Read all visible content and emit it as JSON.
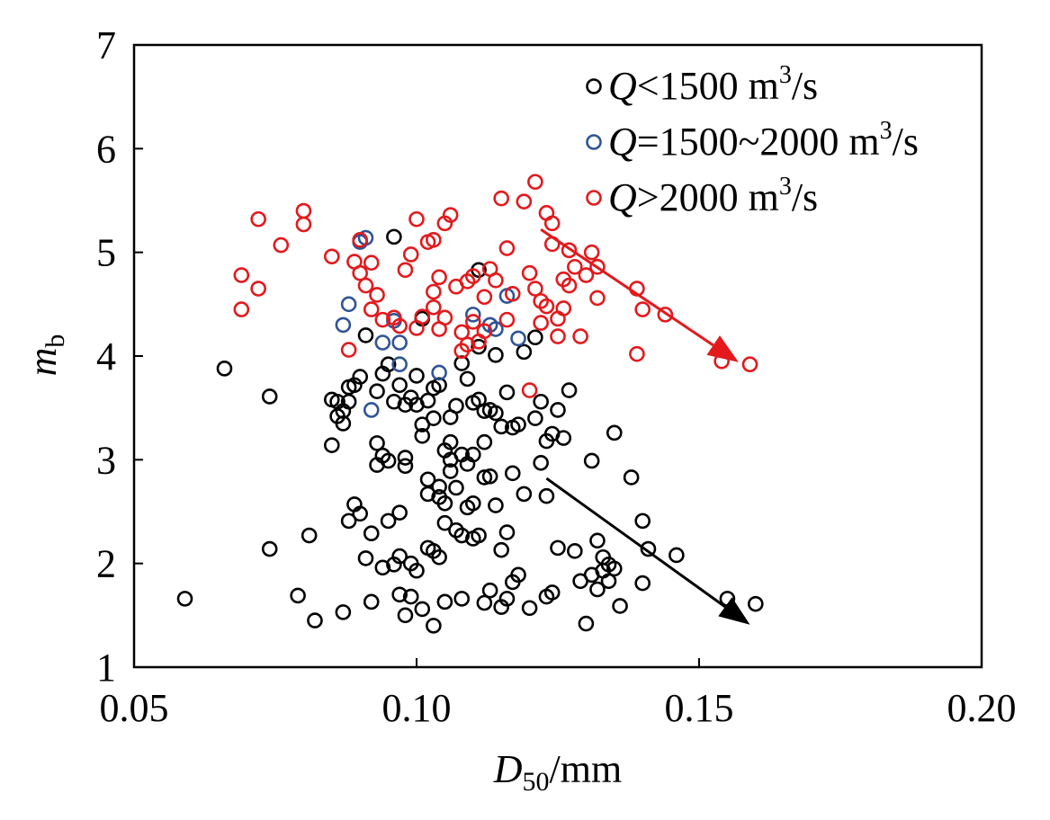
{
  "chart_data": {
    "type": "scatter",
    "title": "",
    "xlabel": {
      "main": "D",
      "sub": "50",
      "unit": "/mm"
    },
    "ylabel": {
      "main": "m",
      "sub": "b"
    },
    "xlim": [
      0.05,
      0.2
    ],
    "ylim": [
      1,
      7
    ],
    "x_ticks": [
      "0.05",
      "0.10",
      "0.15",
      "0.20"
    ],
    "x_tick_values": [
      0.05,
      0.1,
      0.15,
      0.2
    ],
    "y_ticks": [
      "1",
      "2",
      "3",
      "4",
      "5",
      "6",
      "7"
    ],
    "y_tick_values": [
      1,
      2,
      3,
      4,
      5,
      6,
      7
    ],
    "grid": false,
    "legend_position": "top-right",
    "series": [
      {
        "name": "Q<1500 m3/s",
        "legend": {
          "q": "Q",
          "rel": "<1500 m",
          "sup": "3",
          "tail": "/s"
        },
        "color": "#000000",
        "x": [
          0.059,
          0.066,
          0.074,
          0.074,
          0.079,
          0.081,
          0.082,
          0.085,
          0.085,
          0.086,
          0.086,
          0.087,
          0.087,
          0.087,
          0.088,
          0.088,
          0.088,
          0.089,
          0.089,
          0.09,
          0.09,
          0.091,
          0.091,
          0.092,
          0.092,
          0.093,
          0.093,
          0.093,
          0.094,
          0.094,
          0.094,
          0.095,
          0.095,
          0.095,
          0.096,
          0.096,
          0.097,
          0.097,
          0.097,
          0.097,
          0.098,
          0.098,
          0.098,
          0.098,
          0.099,
          0.099,
          0.099,
          0.1,
          0.1,
          0.1,
          0.101,
          0.101,
          0.101,
          0.101,
          0.102,
          0.102,
          0.102,
          0.102,
          0.103,
          0.103,
          0.103,
          0.103,
          0.104,
          0.104,
          0.104,
          0.104,
          0.105,
          0.105,
          0.105,
          0.105,
          0.106,
          0.106,
          0.106,
          0.106,
          0.107,
          0.107,
          0.107,
          0.108,
          0.108,
          0.108,
          0.108,
          0.109,
          0.109,
          0.109,
          0.11,
          0.11,
          0.11,
          0.11,
          0.111,
          0.111,
          0.111,
          0.112,
          0.112,
          0.112,
          0.112,
          0.113,
          0.113,
          0.113,
          0.114,
          0.114,
          0.114,
          0.115,
          0.115,
          0.115,
          0.116,
          0.116,
          0.116,
          0.117,
          0.117,
          0.117,
          0.118,
          0.118,
          0.119,
          0.119,
          0.12,
          0.121,
          0.121,
          0.122,
          0.122,
          0.123,
          0.123,
          0.123,
          0.124,
          0.124,
          0.125,
          0.125,
          0.126,
          0.127,
          0.128,
          0.129,
          0.13,
          0.131,
          0.131,
          0.132,
          0.132,
          0.133,
          0.133,
          0.134,
          0.134,
          0.135,
          0.135,
          0.136,
          0.138,
          0.14,
          0.14,
          0.141,
          0.146,
          0.155,
          0.16,
          0.096,
          0.111
        ],
        "y": [
          1.66,
          3.88,
          3.61,
          2.14,
          1.69,
          2.27,
          1.45,
          3.58,
          3.14,
          3.56,
          3.42,
          3.47,
          3.35,
          1.53,
          2.41,
          3.7,
          3.56,
          2.57,
          3.72,
          3.8,
          2.48,
          2.05,
          4.2,
          1.63,
          2.29,
          3.16,
          2.95,
          3.66,
          3.04,
          1.96,
          3.83,
          2.99,
          2.41,
          3.92,
          3.56,
          1.99,
          2.49,
          2.07,
          1.7,
          3.72,
          1.5,
          3.53,
          3.02,
          2.94,
          3.6,
          1.68,
          2.0,
          3.81,
          1.93,
          3.53,
          3.23,
          1.56,
          4.36,
          3.34,
          2.81,
          2.15,
          2.67,
          3.57,
          2.12,
          1.4,
          3.4,
          3.69,
          2.74,
          2.06,
          2.64,
          3.72,
          3.09,
          2.58,
          1.63,
          2.39,
          3.41,
          2.89,
          3.0,
          3.17,
          2.32,
          2.73,
          3.52,
          1.66,
          3.05,
          2.27,
          3.93,
          2.96,
          2.54,
          3.78,
          3.05,
          2.24,
          2.58,
          3.55,
          4.09,
          3.58,
          2.27,
          2.83,
          3.47,
          3.17,
          1.62,
          2.84,
          3.48,
          1.74,
          4.01,
          2.56,
          3.45,
          3.32,
          2.13,
          1.58,
          3.65,
          2.3,
          1.66,
          2.87,
          3.31,
          1.82,
          3.34,
          1.89,
          4.04,
          2.67,
          1.57,
          4.18,
          3.4,
          2.97,
          3.56,
          3.18,
          1.68,
          2.65,
          3.25,
          1.72,
          3.48,
          2.15,
          3.21,
          3.67,
          2.12,
          1.83,
          1.42,
          1.89,
          2.99,
          1.75,
          2.22,
          2.06,
          1.93,
          1.83,
          1.99,
          3.26,
          1.95,
          1.59,
          2.83,
          2.41,
          1.81,
          2.14,
          2.08,
          1.66,
          1.61,
          5.15,
          4.83
        ]
      },
      {
        "name": "Q=1500~2000 m3/s",
        "legend": {
          "q": "Q",
          "rel": "=1500~2000 m",
          "sup": "3",
          "tail": "/s"
        },
        "color": "#2f5496",
        "x": [
          0.087,
          0.088,
          0.09,
          0.091,
          0.092,
          0.094,
          0.096,
          0.097,
          0.097,
          0.104,
          0.11,
          0.113,
          0.114,
          0.116,
          0.118
        ],
        "y": [
          4.3,
          4.5,
          5.1,
          5.14,
          3.48,
          4.13,
          4.34,
          4.13,
          3.92,
          3.84,
          4.4,
          4.3,
          4.26,
          4.58,
          4.17
        ]
      },
      {
        "name": "Q>2000 m3/s",
        "legend": {
          "q": "Q",
          "rel": ">2000 m",
          "sup": "3",
          "tail": "/s"
        },
        "color": "#e3191c",
        "x": [
          0.069,
          0.069,
          0.072,
          0.072,
          0.076,
          0.08,
          0.08,
          0.085,
          0.088,
          0.089,
          0.09,
          0.09,
          0.091,
          0.092,
          0.092,
          0.093,
          0.094,
          0.096,
          0.097,
          0.098,
          0.099,
          0.1,
          0.1,
          0.101,
          0.102,
          0.103,
          0.103,
          0.103,
          0.104,
          0.104,
          0.105,
          0.105,
          0.106,
          0.107,
          0.108,
          0.108,
          0.109,
          0.109,
          0.11,
          0.11,
          0.111,
          0.112,
          0.112,
          0.113,
          0.114,
          0.115,
          0.116,
          0.116,
          0.117,
          0.119,
          0.12,
          0.12,
          0.121,
          0.121,
          0.122,
          0.122,
          0.123,
          0.123,
          0.124,
          0.124,
          0.125,
          0.125,
          0.126,
          0.126,
          0.127,
          0.127,
          0.128,
          0.129,
          0.13,
          0.131,
          0.132,
          0.132,
          0.139,
          0.139,
          0.14,
          0.144,
          0.154,
          0.159
        ],
        "y": [
          4.78,
          4.45,
          5.32,
          4.65,
          5.07,
          5.4,
          5.27,
          4.96,
          4.06,
          4.91,
          5.12,
          4.8,
          4.68,
          4.9,
          4.45,
          4.59,
          4.35,
          4.37,
          4.29,
          4.83,
          4.98,
          5.32,
          4.27,
          4.38,
          5.1,
          5.12,
          4.62,
          4.47,
          4.76,
          4.26,
          5.28,
          4.37,
          5.36,
          4.67,
          4.05,
          4.23,
          4.72,
          4.11,
          4.77,
          4.33,
          4.14,
          4.57,
          4.24,
          4.84,
          4.73,
          5.52,
          5.04,
          4.35,
          4.6,
          5.49,
          3.67,
          4.8,
          4.65,
          5.68,
          4.53,
          4.32,
          5.38,
          4.48,
          5.28,
          5.08,
          4.36,
          4.19,
          4.46,
          4.74,
          5.02,
          4.68,
          4.86,
          4.19,
          4.78,
          5.0,
          4.86,
          4.56,
          4.65,
          4.02,
          4.45,
          4.4,
          3.95,
          3.92
        ]
      }
    ],
    "arrows": [
      {
        "color": "#e3191c",
        "from": [
          0.122,
          5.22
        ],
        "to": [
          0.157,
          3.94
        ]
      },
      {
        "color": "#000000",
        "from": [
          0.123,
          2.82
        ],
        "to": [
          0.159,
          1.41
        ]
      }
    ]
  }
}
